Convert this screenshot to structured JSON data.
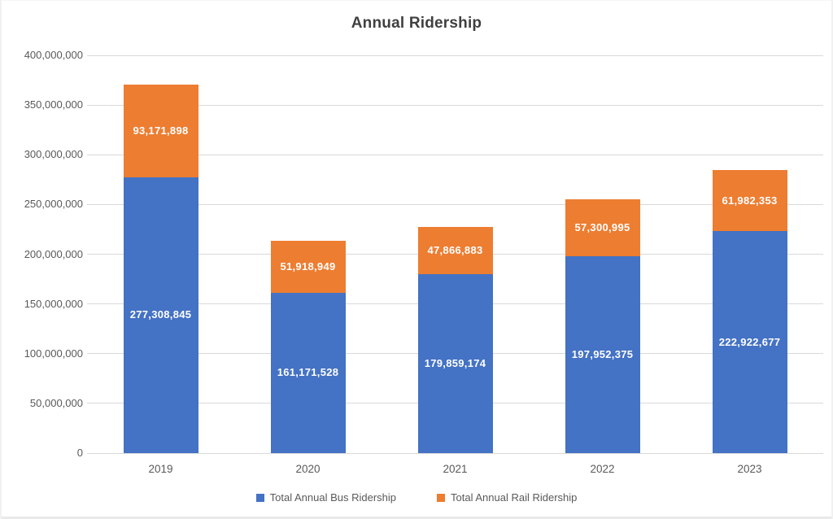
{
  "chart_data": {
    "type": "bar",
    "stacked": true,
    "title": "Annual Ridership",
    "categories": [
      "2019",
      "2020",
      "2021",
      "2022",
      "2023"
    ],
    "series": [
      {
        "name": "Total Annual Bus Ridership",
        "color": "#4472C4",
        "values": [
          277308845,
          161171528,
          179859174,
          197952375,
          222922677
        ],
        "labels": [
          "277,308,845",
          "161,171,528",
          "179,859,174",
          "197,952,375",
          "222,922,677"
        ]
      },
      {
        "name": "Total Annual Rail Ridership",
        "color": "#ED7D31",
        "values": [
          93171898,
          51918949,
          47866883,
          57300995,
          61982353
        ],
        "labels": [
          "93,171,898",
          "51,918,949",
          "47,866,883",
          "57,300,995",
          "61,982,353"
        ]
      }
    ],
    "ylim": [
      0,
      400000000
    ],
    "ytick_step": 50000000,
    "ytick_labels": [
      "0",
      "50,000,000",
      "100,000,000",
      "150,000,000",
      "200,000,000",
      "250,000,000",
      "300,000,000",
      "350,000,000",
      "400,000,000"
    ],
    "grid": true,
    "legend_position": "bottom",
    "colors": {
      "gridline": "#d9d9d9",
      "axis_text": "#595959",
      "title_text": "#404040",
      "data_label_text": "#ffffff"
    }
  }
}
